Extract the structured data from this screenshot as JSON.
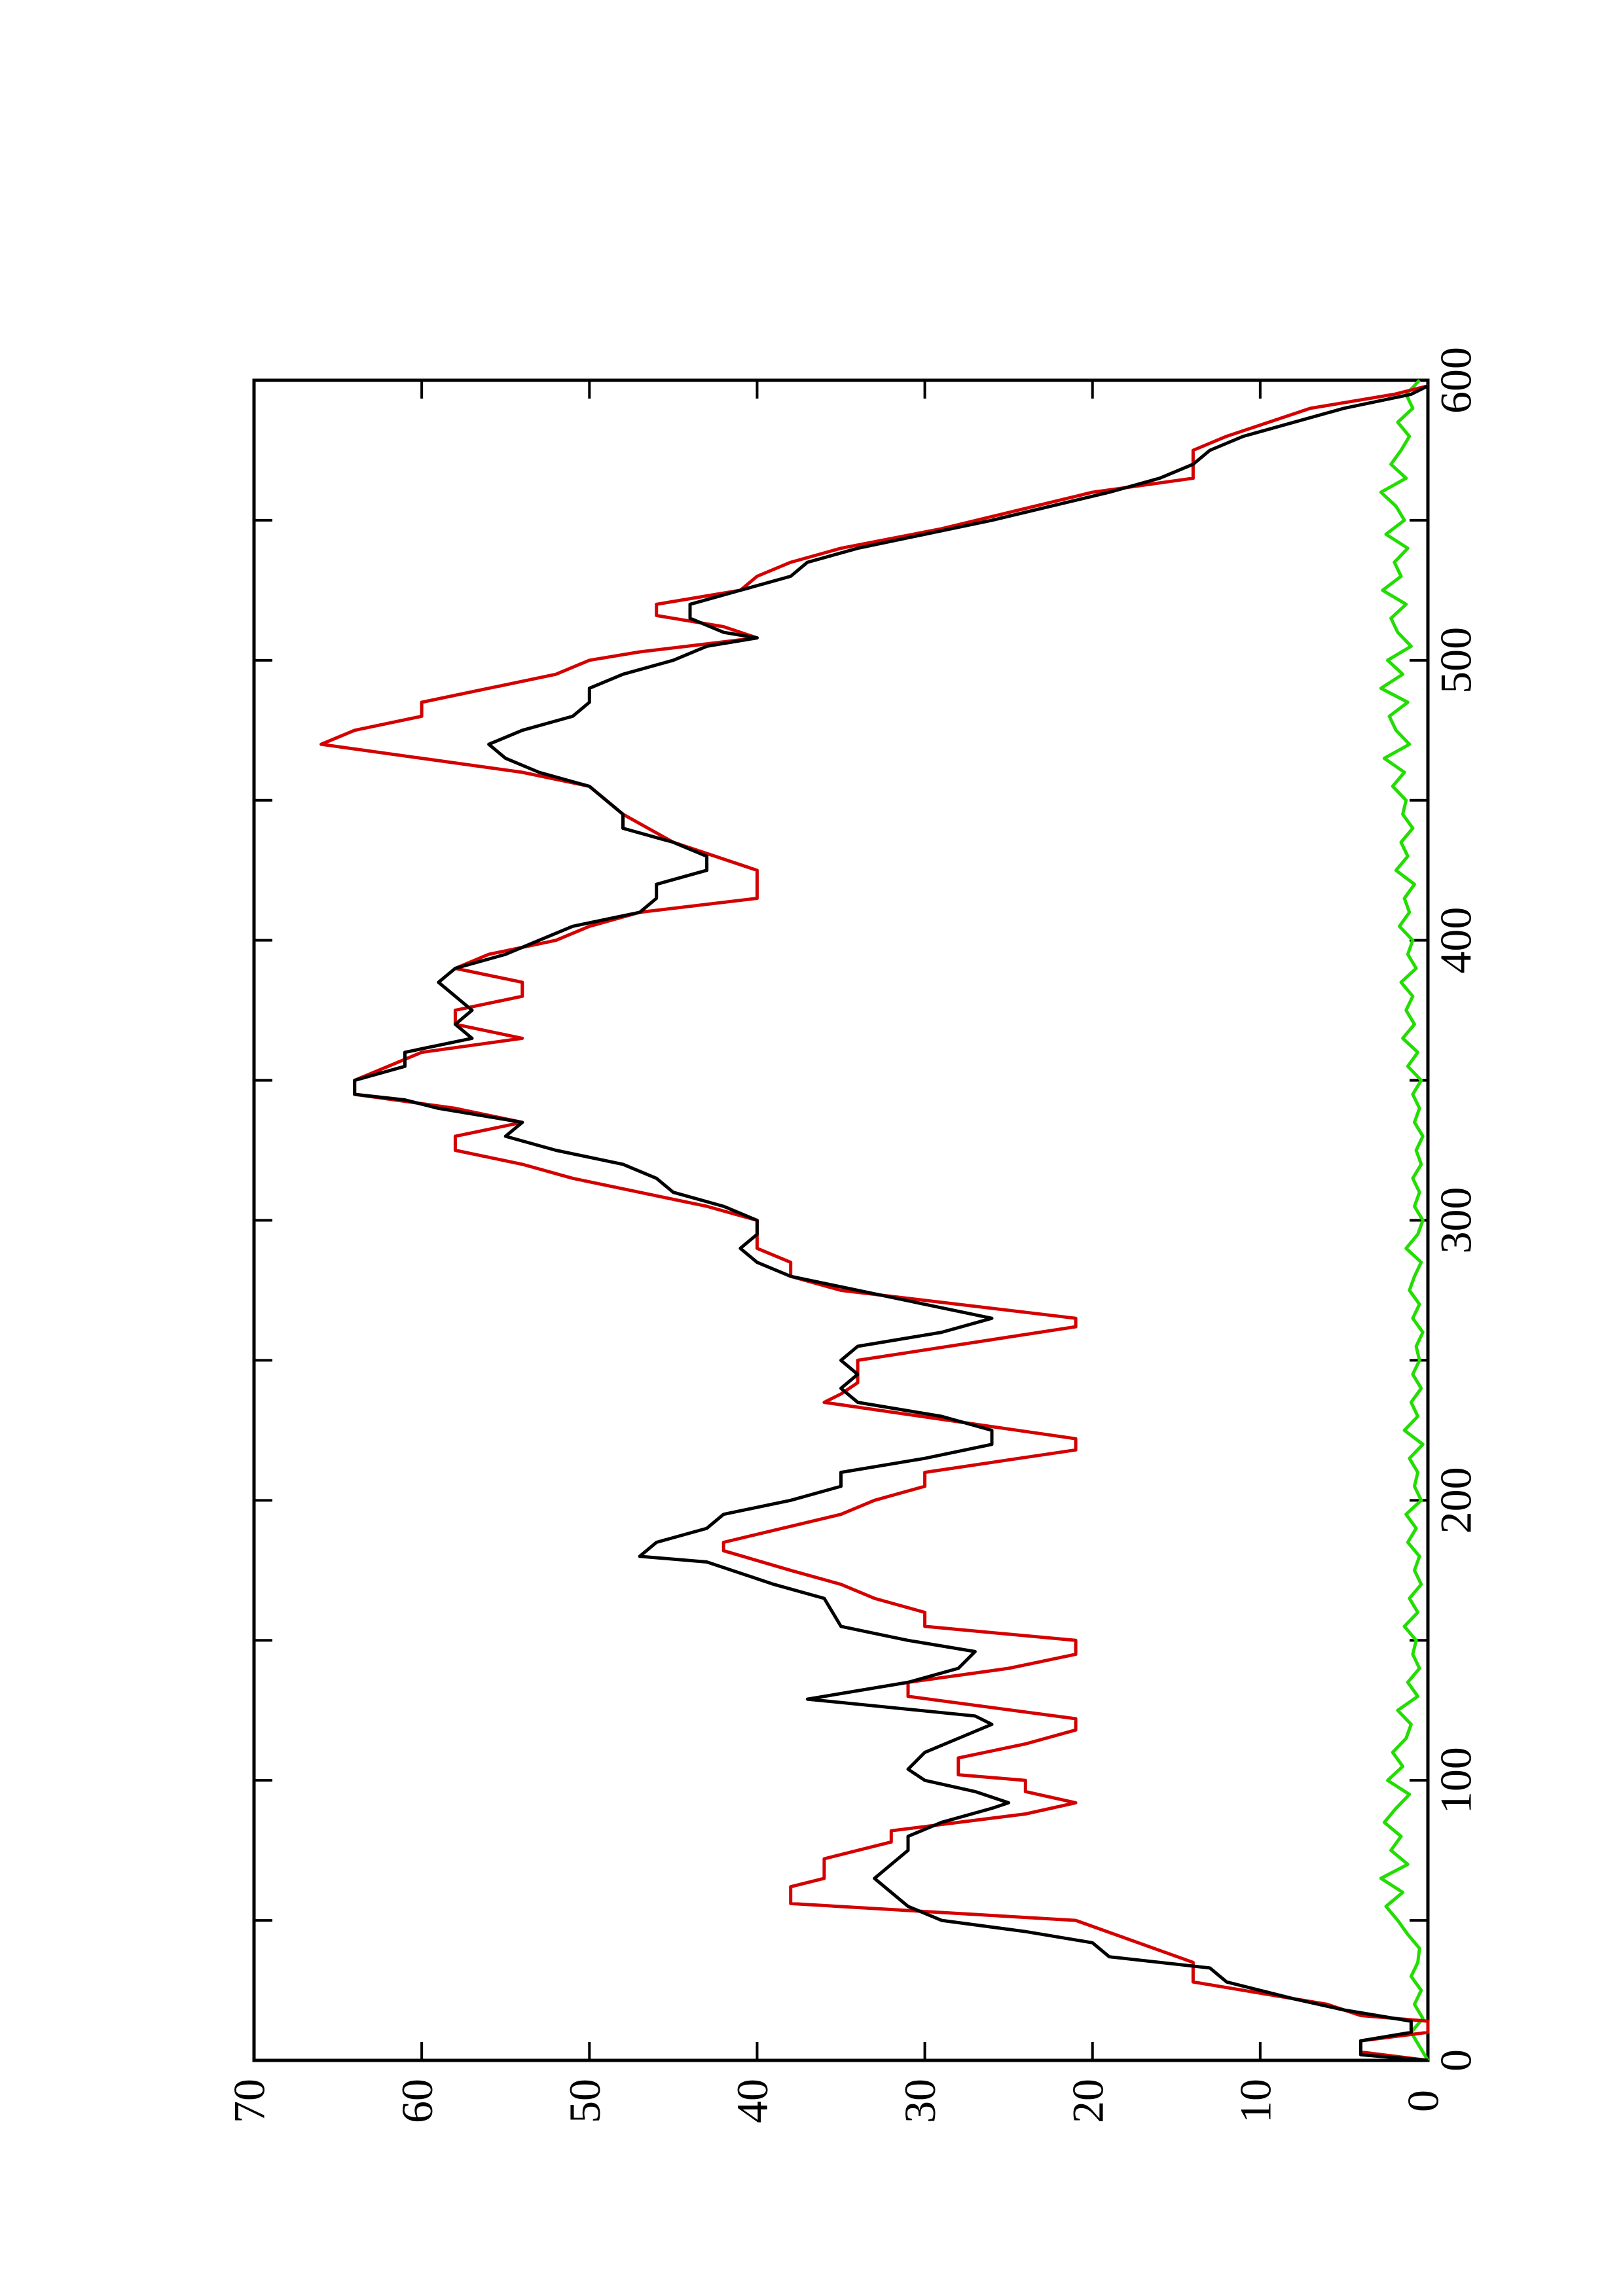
{
  "chart_data": {
    "type": "line",
    "orientation": "rotated",
    "xlim": [
      0,
      600
    ],
    "xticks": [
      0,
      100,
      200,
      300,
      400,
      500,
      600
    ],
    "xminorticks": [
      50,
      150,
      250,
      350,
      450,
      550
    ],
    "ylim": [
      0,
      70
    ],
    "yticks": [
      0,
      10,
      20,
      30,
      40,
      50,
      60,
      70
    ],
    "series": [
      {
        "color": "#000000",
        "x": [
          0,
          2,
          7,
          10,
          14,
          18,
          22,
          28,
          33,
          37,
          42,
          46,
          50,
          55,
          60,
          65,
          70,
          75,
          80,
          85,
          90,
          92,
          96,
          100,
          104,
          110,
          115,
          120,
          123,
          129,
          135,
          140,
          146,
          150,
          155,
          165,
          170,
          178,
          180,
          185,
          190,
          195,
          200,
          205,
          210,
          215,
          220,
          225,
          230,
          235,
          240,
          245,
          250,
          255,
          260,
          265,
          270,
          280,
          285,
          290,
          295,
          300,
          305,
          310,
          315,
          320,
          325,
          330,
          335,
          340,
          343,
          345,
          350,
          355,
          360,
          365,
          370,
          375,
          380,
          385,
          390,
          395,
          400,
          405,
          410,
          415,
          420,
          425,
          430,
          435,
          440,
          445,
          450,
          455,
          460,
          465,
          470,
          475,
          480,
          485,
          490,
          495,
          500,
          505,
          508,
          510,
          515,
          520,
          525,
          530,
          535,
          540,
          550,
          560,
          565,
          570,
          575,
          580,
          590,
          595,
          598
        ],
        "values": [
          0,
          4,
          4,
          1,
          1,
          5,
          8,
          12,
          13,
          19,
          20,
          24,
          29,
          31,
          32,
          33,
          32,
          31,
          31,
          29,
          26,
          25,
          27,
          30,
          31,
          30,
          28,
          26,
          27,
          37,
          31,
          28,
          27,
          31,
          35,
          36,
          39,
          43,
          47,
          46,
          43,
          42,
          38,
          35,
          35,
          30,
          26,
          26,
          29,
          34,
          35,
          34,
          35,
          34,
          29,
          26,
          30,
          38,
          40,
          41,
          40,
          40,
          42,
          45,
          46,
          48,
          52,
          55,
          54,
          59,
          61,
          64,
          64,
          61,
          61,
          57,
          58,
          57,
          58,
          59,
          58,
          55,
          53,
          51,
          47,
          46,
          46,
          43,
          43,
          45,
          48,
          48,
          49,
          50,
          53,
          55,
          56,
          54,
          51,
          50,
          50,
          48,
          45,
          43,
          40,
          42,
          44,
          44,
          41,
          38,
          37,
          34,
          26,
          19,
          16,
          14,
          13,
          11,
          5,
          1,
          0
        ]
      },
      {
        "color": "#d40000",
        "x": [
          0,
          3,
          7,
          10,
          14,
          16,
          20,
          24,
          28,
          35,
          50,
          56,
          62,
          65,
          72,
          78,
          82,
          88,
          92,
          96,
          100,
          102,
          108,
          113,
          118,
          122,
          130,
          135,
          140,
          145,
          150,
          155,
          160,
          165,
          170,
          175,
          182,
          185,
          195,
          200,
          205,
          210,
          218,
          222,
          235,
          238,
          242,
          250,
          262,
          265,
          275,
          280,
          285,
          290,
          300,
          305,
          310,
          315,
          320,
          325,
          330,
          335,
          340,
          345,
          350,
          360,
          365,
          370,
          375,
          380,
          385,
          390,
          395,
          400,
          405,
          410,
          415,
          425,
          435,
          445,
          455,
          460,
          470,
          475,
          480,
          485,
          490,
          495,
          500,
          503,
          508,
          512,
          516,
          520,
          525,
          530,
          535,
          540,
          547,
          560,
          565,
          575,
          580,
          590,
          595,
          598
        ],
        "values": [
          0,
          4,
          4,
          0,
          0,
          4,
          6,
          10,
          14,
          14,
          21,
          38,
          38,
          36,
          36,
          32,
          32,
          24,
          21,
          24,
          24,
          28,
          28,
          24,
          21,
          21,
          31,
          31,
          25,
          21,
          21,
          30,
          30,
          33,
          35,
          38,
          42,
          42,
          35,
          33,
          30,
          30,
          21,
          21,
          36,
          35,
          34,
          34,
          21,
          21,
          35,
          38,
          38,
          40,
          40,
          43,
          47,
          51,
          54,
          58,
          58,
          54,
          58,
          64,
          64,
          60,
          54,
          58,
          58,
          54,
          54,
          58,
          56,
          52,
          50,
          47,
          40,
          40,
          45,
          48,
          50,
          54,
          66,
          64,
          60,
          60,
          56,
          52,
          50,
          47,
          40,
          42,
          46,
          46,
          41,
          40,
          38,
          35,
          29,
          20,
          14,
          14,
          12,
          7,
          2,
          0
        ]
      },
      {
        "color": "#22dd00",
        "x": [
          0,
          5,
          10,
          15,
          20,
          25,
          30,
          35,
          40,
          45,
          50,
          55,
          60,
          65,
          70,
          75,
          80,
          85,
          90,
          95,
          100,
          105,
          110,
          115,
          120,
          125,
          130,
          135,
          140,
          145,
          150,
          155,
          160,
          165,
          170,
          175,
          180,
          185,
          190,
          195,
          200,
          205,
          210,
          215,
          220,
          225,
          230,
          235,
          240,
          245,
          250,
          255,
          260,
          265,
          270,
          275,
          280,
          285,
          290,
          295,
          300,
          305,
          310,
          315,
          320,
          325,
          330,
          335,
          340,
          345,
          350,
          355,
          360,
          365,
          370,
          375,
          380,
          385,
          390,
          395,
          400,
          405,
          410,
          415,
          420,
          425,
          430,
          435,
          440,
          445,
          450,
          455,
          460,
          465,
          470,
          475,
          480,
          485,
          490,
          495,
          500,
          505,
          510,
          515,
          520,
          525,
          530,
          535,
          540,
          545,
          550,
          555,
          560,
          565,
          570,
          575,
          580,
          585,
          590,
          595,
          600
        ],
        "values": [
          0,
          0.5,
          1,
          0.3,
          0.8,
          0.4,
          1,
          0.6,
          0.5,
          1.2,
          1.8,
          2.5,
          1.5,
          2.8,
          1.2,
          2.2,
          1.6,
          2.6,
          1.9,
          1.1,
          2.4,
          1.5,
          2.1,
          1.3,
          1.0,
          1.8,
          0.6,
          1.2,
          0.5,
          0.9,
          0.7,
          1.4,
          0.6,
          1.1,
          0.4,
          0.8,
          0.5,
          1.2,
          0.7,
          1.3,
          0.4,
          0.8,
          0.6,
          1.1,
          0.3,
          1.4,
          0.6,
          1.0,
          0.4,
          0.9,
          0.5,
          0.7,
          0.3,
          0.9,
          0.5,
          1.1,
          0.8,
          0.4,
          1.3,
          0.6,
          0.3,
          0.8,
          0.5,
          0.9,
          0.4,
          0.7,
          0.3,
          0.8,
          0.5,
          0.9,
          0.4,
          1.2,
          0.6,
          1.5,
          0.8,
          1.3,
          0.9,
          1.6,
          0.7,
          1.2,
          0.9,
          1.7,
          1.1,
          1.4,
          0.8,
          1.9,
          1.2,
          1.6,
          0.9,
          1.5,
          1.3,
          2.1,
          1.4,
          2.6,
          1.1,
          1.9,
          2.3,
          1.2,
          2.8,
          1.5,
          2.4,
          1.0,
          1.8,
          2.2,
          1.3,
          2.7,
          1.6,
          2.0,
          1.2,
          2.5,
          1.4,
          1.9,
          2.8,
          1.3,
          2.2,
          1.6,
          1.1,
          1.8,
          0.9,
          1.3,
          0.5
        ]
      }
    ]
  }
}
